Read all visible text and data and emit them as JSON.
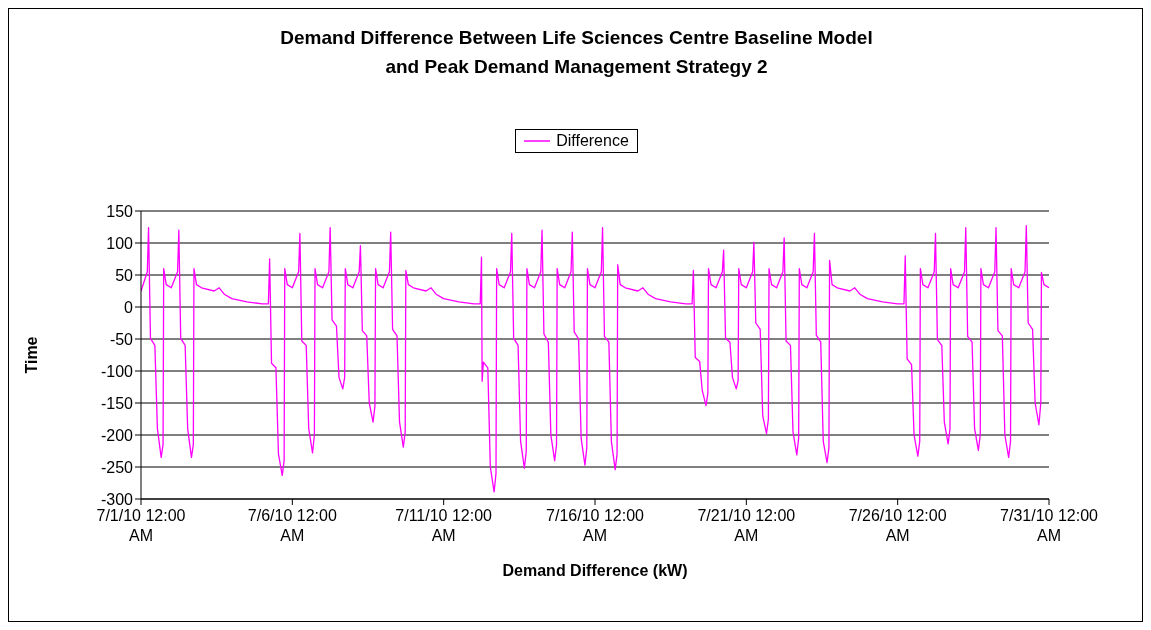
{
  "chart_data": {
    "type": "line",
    "title": "Demand Difference Between Life Sciences Centre Baseline Model and Peak Demand Management Strategy 2",
    "xlabel": "Demand Difference (kW)",
    "ylabel": "Time",
    "xlim": [
      "--07-01T00:00",
      "--07-31T00:00"
    ],
    "xticks": [
      {
        "value": "--07-01T00:00",
        "label": "7/1/10 12:00 AM"
      },
      {
        "value": "--07-06T00:00",
        "label": "7/6/10 12:00 AM"
      },
      {
        "value": "--07-11T00:00",
        "label": "7/11/10 12:00 AM"
      },
      {
        "value": "--07-16T00:00",
        "label": "7/16/10 12:00 AM"
      },
      {
        "value": "--07-21T00:00",
        "label": "7/21/10 12:00 AM"
      },
      {
        "value": "--07-26T00:00",
        "label": "7/26/10 12:00 AM"
      },
      {
        "value": "--07-31T00:00",
        "label": "7/31/10 12:00 AM"
      }
    ],
    "ylim": [
      -300,
      150
    ],
    "yticks": [
      -300,
      -250,
      -200,
      -150,
      -100,
      -50,
      0,
      50,
      100,
      150
    ],
    "grid": "y",
    "legend": "top",
    "marker": "none",
    "line_style": "solid",
    "x": [
      "--07-01T00:00",
      "--07-01T05:00",
      "--07-01T06:00",
      "--07-01T07:30",
      "--07-01T11:00",
      "--07-01T13:00",
      "--07-01T16:00",
      "--07-01T17:30",
      "--07-01T18:00",
      "--07-01T20:00",
      "--07-02T00:00",
      "--07-02T05:00",
      "--07-02T06:00",
      "--07-02T07:30",
      "--07-02T11:00",
      "--07-02T13:00",
      "--07-02T16:00",
      "--07-02T17:30",
      "--07-02T18:00",
      "--07-02T20:00",
      "--07-03T00:00",
      "--07-03T10:00",
      "--07-03T14:00",
      "--07-03T18:00",
      "--07-04T00:00",
      "--07-04T12:00",
      "--07-05T00:00",
      "--07-05T05:00",
      "--07-05T06:00",
      "--07-05T07:30",
      "--07-05T11:00",
      "--07-05T13:00",
      "--07-05T16:00",
      "--07-05T17:30",
      "--07-05T18:00",
      "--07-05T20:00",
      "--07-06T00:00",
      "--07-06T05:00",
      "--07-06T06:00",
      "--07-06T07:30",
      "--07-06T11:00",
      "--07-06T13:00",
      "--07-06T16:00",
      "--07-06T17:30",
      "--07-06T18:00",
      "--07-06T20:00",
      "--07-07T00:00",
      "--07-07T05:00",
      "--07-07T06:00",
      "--07-07T07:30",
      "--07-07T11:00",
      "--07-07T13:00",
      "--07-07T16:00",
      "--07-07T17:30",
      "--07-07T18:00",
      "--07-07T20:00",
      "--07-08T00:00",
      "--07-08T05:00",
      "--07-08T06:00",
      "--07-08T07:30",
      "--07-08T11:00",
      "--07-08T13:00",
      "--07-08T16:00",
      "--07-08T17:30",
      "--07-08T18:00",
      "--07-08T20:00",
      "--07-09T00:00",
      "--07-09T05:00",
      "--07-09T06:00",
      "--07-09T07:30",
      "--07-09T11:00",
      "--07-09T13:00",
      "--07-09T16:00",
      "--07-09T17:30",
      "--07-09T18:00",
      "--07-09T20:00",
      "--07-10T00:00",
      "--07-10T10:00",
      "--07-10T14:00",
      "--07-10T18:00",
      "--07-11T00:00",
      "--07-11T12:00",
      "--07-12T00:00",
      "--07-12T05:00",
      "--07-12T06:00",
      "--07-12T06:30",
      "--07-12T07:30",
      "--07-12T11:00",
      "--07-12T13:00",
      "--07-12T16:00",
      "--07-12T17:30",
      "--07-12T18:00",
      "--07-12T20:00",
      "--07-13T00:00",
      "--07-13T05:00",
      "--07-13T06:00",
      "--07-13T07:30",
      "--07-13T11:00",
      "--07-13T13:00",
      "--07-13T16:00",
      "--07-13T17:30",
      "--07-13T18:00",
      "--07-13T20:00",
      "--07-14T00:00",
      "--07-14T05:00",
      "--07-14T06:00",
      "--07-14T07:30",
      "--07-14T11:00",
      "--07-14T13:00",
      "--07-14T16:00",
      "--07-14T17:30",
      "--07-14T18:00",
      "--07-14T20:00",
      "--07-15T00:00",
      "--07-15T05:00",
      "--07-15T06:00",
      "--07-15T07:30",
      "--07-15T11:00",
      "--07-15T13:00",
      "--07-15T16:00",
      "--07-15T17:30",
      "--07-15T18:00",
      "--07-15T20:00",
      "--07-16T00:00",
      "--07-16T05:00",
      "--07-16T06:00",
      "--07-16T07:30",
      "--07-16T11:00",
      "--07-16T13:00",
      "--07-16T16:00",
      "--07-16T17:30",
      "--07-16T18:00",
      "--07-16T20:00",
      "--07-17T00:00",
      "--07-17T10:00",
      "--07-17T14:00",
      "--07-17T18:00",
      "--07-18T00:00",
      "--07-18T12:00",
      "--07-19T00:00",
      "--07-19T05:00",
      "--07-19T06:00",
      "--07-19T07:30",
      "--07-19T11:00",
      "--07-19T13:00",
      "--07-19T16:00",
      "--07-19T17:30",
      "--07-19T18:00",
      "--07-19T20:00",
      "--07-20T00:00",
      "--07-20T05:00",
      "--07-20T06:00",
      "--07-20T07:30",
      "--07-20T11:00",
      "--07-20T13:00",
      "--07-20T16:00",
      "--07-20T17:30",
      "--07-20T18:00",
      "--07-20T20:00",
      "--07-21T00:00",
      "--07-21T05:00",
      "--07-21T06:00",
      "--07-21T07:30",
      "--07-21T11:00",
      "--07-21T13:00",
      "--07-21T16:00",
      "--07-21T17:30",
      "--07-21T18:00",
      "--07-21T20:00",
      "--07-22T00:00",
      "--07-22T05:00",
      "--07-22T06:00",
      "--07-22T07:30",
      "--07-22T11:00",
      "--07-22T13:00",
      "--07-22T16:00",
      "--07-22T17:30",
      "--07-22T18:00",
      "--07-22T20:00",
      "--07-23T00:00",
      "--07-23T05:00",
      "--07-23T06:00",
      "--07-23T07:30",
      "--07-23T11:00",
      "--07-23T13:00",
      "--07-23T16:00",
      "--07-23T17:30",
      "--07-23T18:00",
      "--07-23T20:00",
      "--07-24T00:00",
      "--07-24T10:00",
      "--07-24T14:00",
      "--07-24T18:00",
      "--07-25T00:00",
      "--07-25T12:00",
      "--07-26T00:00",
      "--07-26T05:00",
      "--07-26T06:00",
      "--07-26T07:30",
      "--07-26T11:00",
      "--07-26T13:00",
      "--07-26T16:00",
      "--07-26T17:30",
      "--07-26T18:00",
      "--07-26T20:00",
      "--07-27T00:00",
      "--07-27T05:00",
      "--07-27T06:00",
      "--07-27T07:30",
      "--07-27T11:00",
      "--07-27T13:00",
      "--07-27T16:00",
      "--07-27T17:30",
      "--07-27T18:00",
      "--07-27T20:00",
      "--07-28T00:00",
      "--07-28T05:00",
      "--07-28T06:00",
      "--07-28T07:30",
      "--07-28T11:00",
      "--07-28T13:00",
      "--07-28T16:00",
      "--07-28T17:30",
      "--07-28T18:00",
      "--07-28T20:00",
      "--07-29T00:00",
      "--07-29T05:00",
      "--07-29T06:00",
      "--07-29T07:30",
      "--07-29T11:00",
      "--07-29T13:00",
      "--07-29T16:00",
      "--07-29T17:30",
      "--07-29T18:00",
      "--07-29T20:00",
      "--07-30T00:00",
      "--07-30T05:00",
      "--07-30T06:00",
      "--07-30T07:30",
      "--07-30T11:00",
      "--07-30T13:00",
      "--07-30T16:00",
      "--07-30T17:30",
      "--07-30T18:00",
      "--07-30T20:00",
      "--07-31T00:00"
    ],
    "series": [
      {
        "name": "Difference",
        "color": "#ff00ff",
        "values": [
          25,
          55,
          124,
          -49,
          -60,
          -190,
          -235,
          -215,
          60,
          35,
          30,
          55,
          120,
          -49,
          -60,
          -190,
          -235,
          -215,
          60,
          35,
          30,
          25,
          30,
          20,
          13,
          8,
          5,
          5,
          75,
          -88,
          -95,
          -230,
          -263,
          -240,
          60,
          35,
          30,
          55,
          115,
          -53,
          -60,
          -190,
          -228,
          -200,
          60,
          35,
          30,
          55,
          124,
          -20,
          -30,
          -110,
          -128,
          -110,
          60,
          35,
          30,
          55,
          96,
          -37,
          -45,
          -150,
          -180,
          -155,
          60,
          35,
          30,
          55,
          117,
          -35,
          -45,
          -180,
          -219,
          -195,
          57,
          35,
          30,
          25,
          30,
          20,
          13,
          8,
          5,
          5,
          78,
          -116,
          -86,
          -95,
          -250,
          -289,
          -260,
          60,
          35,
          30,
          55,
          115,
          -49,
          -60,
          -210,
          -252,
          -225,
          60,
          35,
          30,
          55,
          120,
          -42,
          -55,
          -200,
          -240,
          -215,
          60,
          35,
          30,
          55,
          117,
          -39,
          -50,
          -205,
          -247,
          -220,
          60,
          35,
          30,
          55,
          124,
          -46,
          -55,
          -210,
          -254,
          -230,
          66,
          35,
          30,
          25,
          30,
          20,
          13,
          8,
          5,
          5,
          57,
          -79,
          -85,
          -130,
          -154,
          -135,
          60,
          35,
          30,
          55,
          89,
          -49,
          -55,
          -110,
          -128,
          -115,
          60,
          35,
          30,
          55,
          101,
          -25,
          -35,
          -170,
          -198,
          -175,
          60,
          35,
          30,
          55,
          108,
          -53,
          -60,
          -195,
          -231,
          -205,
          60,
          35,
          30,
          55,
          115,
          -44,
          -55,
          -210,
          -243,
          -220,
          73,
          35,
          30,
          25,
          30,
          20,
          13,
          8,
          5,
          5,
          80,
          -81,
          -90,
          -200,
          -233,
          -210,
          60,
          35,
          30,
          55,
          115,
          -51,
          -60,
          -180,
          -214,
          -190,
          60,
          35,
          30,
          55,
          124,
          -46,
          -55,
          -190,
          -224,
          -200,
          60,
          35,
          30,
          55,
          124,
          -37,
          -45,
          -200,
          -235,
          -210,
          60,
          35,
          30,
          55,
          127,
          -25,
          -35,
          -150,
          -184,
          -150,
          54,
          35,
          30
        ]
      }
    ]
  }
}
